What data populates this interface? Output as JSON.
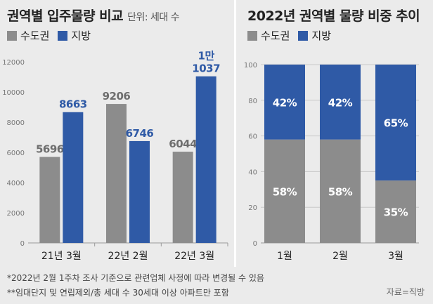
{
  "colors": {
    "metro": "#8c8c8c",
    "local": "#2f5aa6",
    "highlight": "#2f5aa6"
  },
  "left_title": {
    "main": "권역별 입주물량 비교",
    "unit": "단위: 세대 수"
  },
  "right_title": "2022년 권역별 물량 비중 추이",
  "legend": {
    "metro": "수도권",
    "local": "지방"
  },
  "notes": [
    "*2022년 2월 1주차 조사 기준으로 관련업체 사정에 따라 변경될 수 있음",
    "**임대단지 및 연립제외/총 세대 수 30세대 이상 아파트만 포함"
  ],
  "source": "자료=직방",
  "chart_data": [
    {
      "type": "bar",
      "title": "권역별 입주물량 비교",
      "ylabel": "단위: 세대 수",
      "categories": [
        "21년 3월",
        "22년 2월",
        "22년 3월"
      ],
      "series": [
        {
          "name": "수도권",
          "values": [
            5696,
            9206,
            6044
          ],
          "labels": [
            "5696",
            "9206",
            "6044"
          ]
        },
        {
          "name": "지방",
          "values": [
            8663,
            6746,
            11037
          ],
          "labels": [
            "8663",
            "6746",
            "1만\n1037"
          ]
        }
      ],
      "yticks": [
        "0",
        "2000",
        "4000",
        "6000",
        "8000",
        "10000",
        "12000"
      ],
      "ylim": [
        0,
        12000
      ]
    },
    {
      "type": "bar",
      "stacked": true,
      "title": "2022년 권역별 물량 비중 추이",
      "categories": [
        "1월",
        "2월",
        "3월"
      ],
      "series": [
        {
          "name": "수도권",
          "values": [
            58,
            58,
            35
          ],
          "labels": [
            "58%",
            "58%",
            "35%"
          ]
        },
        {
          "name": "지방",
          "values": [
            42,
            42,
            65
          ],
          "labels": [
            "42%",
            "42%",
            "65%"
          ]
        }
      ],
      "yticks": [
        "0",
        "20",
        "40",
        "60",
        "80",
        "100"
      ],
      "ylim": [
        0,
        100
      ]
    }
  ]
}
